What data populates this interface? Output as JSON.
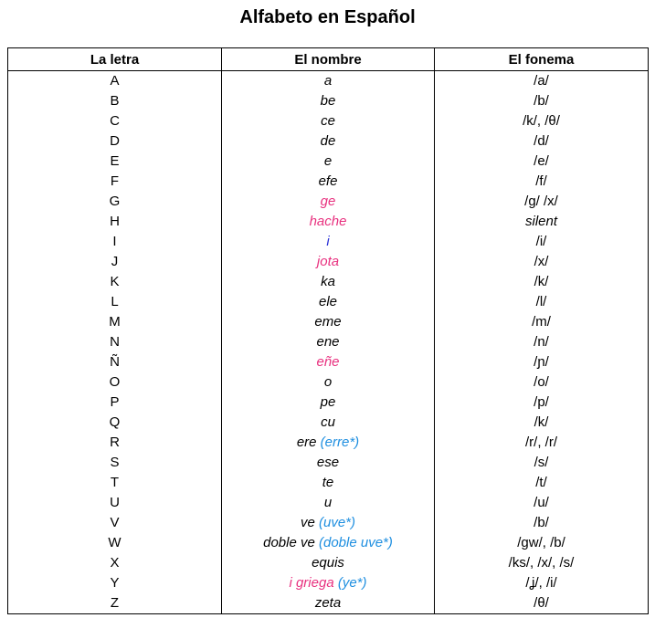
{
  "title": "Alfabeto en Español",
  "colors": {
    "pink": "#e8317f",
    "blue": "#2b31d6",
    "cyan": "#1f8fe0"
  },
  "headers": [
    "La letra",
    "El nombre",
    "El fonema"
  ],
  "rows": [
    {
      "letter": "A",
      "name": [
        {
          "text": "a",
          "color": "black"
        }
      ],
      "phoneme": "/a/"
    },
    {
      "letter": "B",
      "name": [
        {
          "text": "be",
          "color": "black"
        }
      ],
      "phoneme": "/b/"
    },
    {
      "letter": "C",
      "name": [
        {
          "text": "ce",
          "color": "black"
        }
      ],
      "phoneme": "/k/, /θ/"
    },
    {
      "letter": "D",
      "name": [
        {
          "text": "de",
          "color": "black"
        }
      ],
      "phoneme": "/d/"
    },
    {
      "letter": "E",
      "name": [
        {
          "text": "e",
          "color": "black"
        }
      ],
      "phoneme": "/e/"
    },
    {
      "letter": "F",
      "name": [
        {
          "text": "efe",
          "color": "black"
        }
      ],
      "phoneme": "/f/"
    },
    {
      "letter": "G",
      "name": [
        {
          "text": "ge",
          "color": "pink"
        }
      ],
      "phoneme": "/g/ /x/"
    },
    {
      "letter": "H",
      "name": [
        {
          "text": "hache",
          "color": "pink"
        }
      ],
      "phoneme": "silent",
      "phoneme_italic": true
    },
    {
      "letter": "I",
      "name": [
        {
          "text": "i",
          "color": "blue"
        }
      ],
      "phoneme": "/i/"
    },
    {
      "letter": "J",
      "name": [
        {
          "text": "jota",
          "color": "pink"
        }
      ],
      "phoneme": "/x/"
    },
    {
      "letter": "K",
      "name": [
        {
          "text": "ka",
          "color": "black"
        }
      ],
      "phoneme": "/k/"
    },
    {
      "letter": "L",
      "name": [
        {
          "text": "ele",
          "color": "black"
        }
      ],
      "phoneme": "/l/"
    },
    {
      "letter": "M",
      "name": [
        {
          "text": "eme",
          "color": "black"
        }
      ],
      "phoneme": "/m/"
    },
    {
      "letter": "N",
      "name": [
        {
          "text": "ene",
          "color": "black"
        }
      ],
      "phoneme": "/n/"
    },
    {
      "letter": "Ñ",
      "name": [
        {
          "text": "eñe",
          "color": "pink"
        }
      ],
      "phoneme": "/ɲ/"
    },
    {
      "letter": "O",
      "name": [
        {
          "text": "o",
          "color": "black"
        }
      ],
      "phoneme": "/o/"
    },
    {
      "letter": "P",
      "name": [
        {
          "text": "pe",
          "color": "black"
        }
      ],
      "phoneme": "/p/"
    },
    {
      "letter": "Q",
      "name": [
        {
          "text": "cu",
          "color": "black"
        }
      ],
      "phoneme": "/k/"
    },
    {
      "letter": "R",
      "name": [
        {
          "text": "ere ",
          "color": "black"
        },
        {
          "text": "(erre*)",
          "color": "cyan"
        }
      ],
      "phoneme": "/r/, /r/"
    },
    {
      "letter": "S",
      "name": [
        {
          "text": "ese",
          "color": "black"
        }
      ],
      "phoneme": "/s/"
    },
    {
      "letter": "T",
      "name": [
        {
          "text": "te",
          "color": "black"
        }
      ],
      "phoneme": "/t/"
    },
    {
      "letter": "U",
      "name": [
        {
          "text": "u",
          "color": "black"
        }
      ],
      "phoneme": "/u/"
    },
    {
      "letter": "V",
      "name": [
        {
          "text": "ve ",
          "color": "black"
        },
        {
          "text": "(uve*)",
          "color": "cyan"
        }
      ],
      "phoneme": "/b/"
    },
    {
      "letter": "W",
      "name": [
        {
          "text": "doble ve ",
          "color": "black"
        },
        {
          "text": "(doble uve*)",
          "color": "cyan"
        }
      ],
      "phoneme": "/gw/, /b/"
    },
    {
      "letter": "X",
      "name": [
        {
          "text": "equis",
          "color": "black"
        }
      ],
      "phoneme": "/ks/, /x/, /s/"
    },
    {
      "letter": "Y",
      "name": [
        {
          "text": "i griega ",
          "color": "pink"
        },
        {
          "text": "(ye*)",
          "color": "cyan"
        }
      ],
      "phoneme": "/ʝ/, /i/"
    },
    {
      "letter": "Z",
      "name": [
        {
          "text": "zeta",
          "color": "black"
        }
      ],
      "phoneme": "/θ/"
    }
  ]
}
